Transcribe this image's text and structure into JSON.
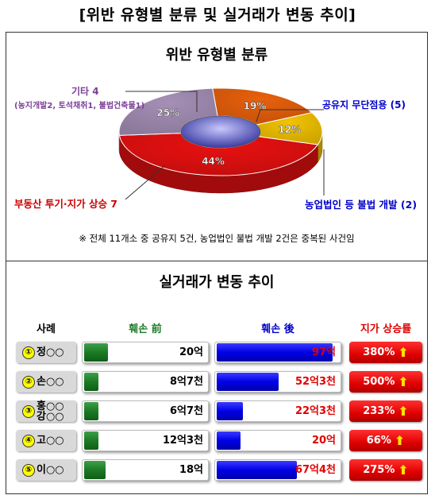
{
  "main_title": "[위반 유형별 분류 및 실거래가 변동 추이]",
  "pie_section": {
    "title": "위반 유형별 분류",
    "labels": {
      "other": "기타 4",
      "other_detail": "(농지개발2, 토석채취1, 불법건축물1)",
      "public_land": "공유지 무단점용 (5)",
      "speculation": "부동산 투기·지가 상승 7",
      "agri_corp": "농업법인 등 불법 개발 (2)"
    },
    "footnote": "※ 전체 11개소 중 공유지 5건, 농업법인 불법 개발 2건은 중복된 사건임"
  },
  "trend_section": {
    "title": "실거래가 변동 추이",
    "headers": {
      "case": "사례",
      "before": "훼손 前",
      "after": "훼손 後",
      "rate": "지가 상승률"
    },
    "rows": [
      {
        "num": "①",
        "name": "정○○",
        "before": "20억",
        "after": "97억",
        "rate": "380%"
      },
      {
        "num": "②",
        "name": "손○○",
        "before": "8억7천",
        "after": "52억3천",
        "rate": "500%"
      },
      {
        "num": "③",
        "name": "홍○○\n강○○",
        "before": "6억7천",
        "after": "22억3천",
        "rate": "233%"
      },
      {
        "num": "④",
        "name": "고○○",
        "before": "12억3천",
        "after": "20억",
        "rate": "66%"
      },
      {
        "num": "⑤",
        "name": "이○○",
        "before": "18억",
        "after": "67억4천",
        "rate": "275%"
      }
    ]
  },
  "chart_data": [
    {
      "type": "pie",
      "title": "위반 유형별 분류",
      "categories": [
        "공유지 무단점용",
        "농업법인 등 불법 개발",
        "부동산 투기·지가 상승",
        "기타"
      ],
      "values": [
        19,
        12,
        44,
        25
      ],
      "counts": [
        5,
        2,
        7,
        4
      ],
      "colors": [
        "#e8600c",
        "#f2c200",
        "#e81010",
        "#a58fb6"
      ]
    },
    {
      "type": "bar",
      "title": "실거래가 변동 추이",
      "categories": [
        "①정○○",
        "②손○○",
        "③홍○○ 강○○",
        "④고○○",
        "⑤이○○"
      ],
      "series": [
        {
          "name": "훼손 前",
          "values": [
            20,
            8.7,
            6.7,
            12.3,
            18
          ],
          "color": "#1c7a25"
        },
        {
          "name": "훼손 後",
          "values": [
            97,
            52.3,
            22.3,
            20,
            67.4
          ],
          "color": "#0000e6"
        }
      ],
      "rates": [
        380,
        500,
        233,
        66,
        275
      ]
    }
  ]
}
